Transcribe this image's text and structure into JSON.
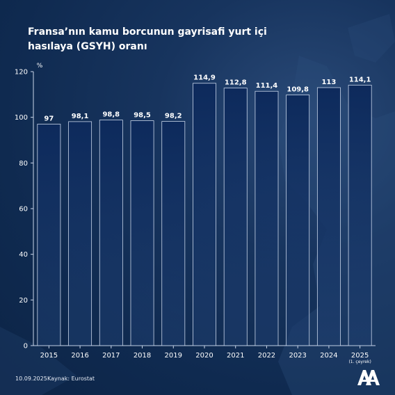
{
  "title": "Fransa’nın kamu borcunun gayrisafi yurt içi hasılaya (GSYH) oranı",
  "footer": {
    "date": "10.09.2025",
    "source": "Kaynak: Eurostat"
  },
  "chart_data": {
    "type": "bar",
    "title": "Fransa’nın kamu borcunun gayrisafi yurt içi hasılaya (GSYH) oranı",
    "unit_label": "%",
    "categories": [
      "2015",
      "2016",
      "2017",
      "2018",
      "2019",
      "2020",
      "2021",
      "2022",
      "2023",
      "2024",
      "2025"
    ],
    "category_notes": [
      "",
      "",
      "",
      "",
      "",
      "",
      "",
      "",
      "",
      "",
      "(1. çeyrek)"
    ],
    "values": [
      97,
      98.1,
      98.8,
      98.5,
      98.2,
      114.9,
      112.8,
      111.4,
      109.8,
      113,
      114.1
    ],
    "value_labels": [
      "97",
      "98,1",
      "98,8",
      "98,5",
      "98,2",
      "114,9",
      "112,8",
      "111,4",
      "109,8",
      "113",
      "114,1"
    ],
    "ylim": [
      0,
      120
    ],
    "yticks": [
      0,
      20,
      40,
      60,
      80,
      100,
      120
    ],
    "grid": false,
    "colors": {
      "bar_top": "#0d2a5c",
      "bar_bottom": "#1d3d6e",
      "bar_stroke": "#c9d6ea",
      "text": "#ffffff"
    }
  }
}
